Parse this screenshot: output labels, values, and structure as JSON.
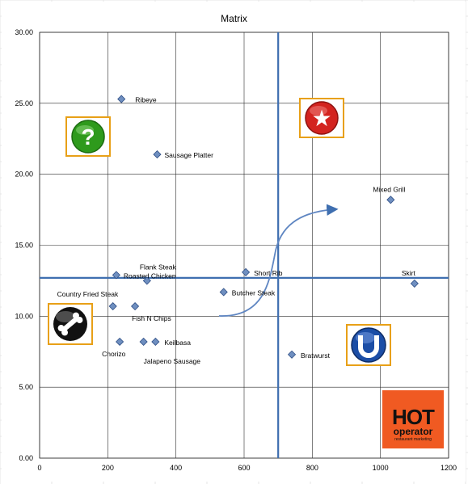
{
  "chart_data": {
    "type": "scatter",
    "title": "Matrix",
    "xlabel": "",
    "ylabel": "",
    "xlim": [
      0,
      1200
    ],
    "ylim": [
      0,
      30
    ],
    "x_ticks": [
      "0",
      "200",
      "400",
      "600",
      "800",
      "1000",
      "1200"
    ],
    "y_ticks": [
      "0.00",
      "5.00",
      "10.00",
      "15.00",
      "20.00",
      "25.00",
      "30.00"
    ],
    "grid": true,
    "marker_color": "#6f8fc0",
    "divider_color": "#3f6fb0",
    "divider_x": 700,
    "divider_y": 12.7,
    "points": [
      {
        "label": "Ribeye",
        "x": 240,
        "y": 25.3
      },
      {
        "label": "Sausage Platter",
        "x": 345,
        "y": 21.4
      },
      {
        "label": "Mixed Grill",
        "x": 1030,
        "y": 18.2
      },
      {
        "label": "Short Rib",
        "x": 605,
        "y": 13.1
      },
      {
        "label": "Skirt",
        "x": 1100,
        "y": 12.3
      },
      {
        "label": "Roasted Chicken",
        "x": 225,
        "y": 12.9
      },
      {
        "label": "Flank Steak",
        "x": 315,
        "y": 12.5
      },
      {
        "label": "Butcher Steak",
        "x": 540,
        "y": 11.7
      },
      {
        "label": "Country Fried Steak",
        "x": 215,
        "y": 10.7
      },
      {
        "label": "Fish N Chips",
        "x": 280,
        "y": 10.7
      },
      {
        "label": "Chorizo",
        "x": 235,
        "y": 8.2
      },
      {
        "label": "Keilbasa",
        "x": 340,
        "y": 8.2
      },
      {
        "label": "Jalapeno Sausage",
        "x": 305,
        "y": 8.2
      },
      {
        "label": "Bratwurst",
        "x": 740,
        "y": 7.3
      }
    ],
    "quadrant_icons": [
      {
        "name": "question-mark-icon",
        "glyph": "?",
        "color": "#2e9a1c"
      },
      {
        "name": "star-icon",
        "glyph": "★",
        "color": "#d3231f"
      },
      {
        "name": "bone-icon",
        "glyph": "",
        "color": "#111111"
      },
      {
        "name": "horseshoe-icon",
        "glyph": "U",
        "color": "#1c4ea6"
      }
    ]
  },
  "logo": {
    "line1": "HOT",
    "line2": "operator",
    "line3": "restaurant marketing",
    "color": "#f05a22"
  }
}
